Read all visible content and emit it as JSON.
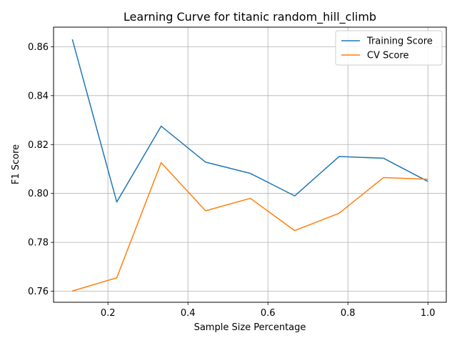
{
  "chart_data": {
    "type": "line",
    "title": "Learning Curve for titanic random_hill_climb",
    "xlabel": "Sample Size Percentage",
    "ylabel": "F1 Score",
    "xlim": [
      0.064,
      1.046
    ],
    "ylim": [
      0.7555,
      0.868
    ],
    "xticks": [
      0.2,
      0.4,
      0.6,
      0.8,
      1.0
    ],
    "xtick_labels": [
      "0.2",
      "0.4",
      "0.6",
      "0.8",
      "1.0"
    ],
    "yticks": [
      0.76,
      0.78,
      0.8,
      0.82,
      0.84,
      0.86
    ],
    "ytick_labels": [
      "0.76",
      "0.78",
      "0.80",
      "0.82",
      "0.84",
      "0.86"
    ],
    "grid": true,
    "legend_position": "top-right",
    "x": [
      0.111,
      0.222,
      0.333,
      0.444,
      0.556,
      0.667,
      0.778,
      0.889,
      1.0
    ],
    "series": [
      {
        "name": "Training Score",
        "color": "#1f77b4",
        "values": [
          0.863,
          0.7965,
          0.8275,
          0.8128,
          0.8082,
          0.799,
          0.8151,
          0.8144,
          0.8049
        ]
      },
      {
        "name": "CV Score",
        "color": "#ff7f0e",
        "values": [
          0.7601,
          0.7655,
          0.8126,
          0.7929,
          0.798,
          0.7848,
          0.7919,
          0.8065,
          0.8058
        ]
      }
    ]
  }
}
